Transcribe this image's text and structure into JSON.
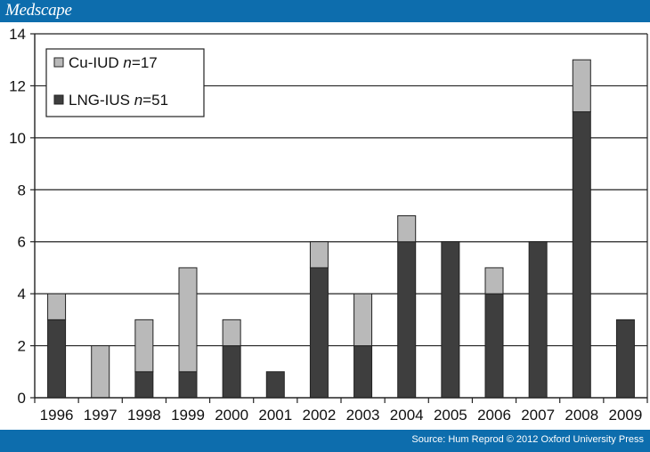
{
  "header": {
    "brand": "Medscape"
  },
  "footer": {
    "source": "Source: Hum Reprod © 2012 Oxford University Press"
  },
  "colors": {
    "bar_bar": "#0d6dad",
    "cu_iud": "#b9b9b9",
    "lng_ius": "#3e3e3e"
  },
  "chart_data": {
    "type": "bar",
    "stacked": true,
    "categories": [
      "1996",
      "1997",
      "1998",
      "1999",
      "2000",
      "2001",
      "2002",
      "2003",
      "2004",
      "2005",
      "2006",
      "2007",
      "2008",
      "2009"
    ],
    "series": [
      {
        "name": "LNG-IUS",
        "label_n": "51",
        "values": [
          3,
          0,
          1,
          1,
          2,
          1,
          5,
          2,
          6,
          6,
          4,
          6,
          11,
          3
        ]
      },
      {
        "name": "Cu-IUD",
        "label_n": "17",
        "values": [
          1,
          2,
          2,
          4,
          1,
          0,
          1,
          2,
          1,
          0,
          1,
          0,
          2,
          0
        ]
      }
    ],
    "ylim": [
      0,
      14
    ],
    "yticks": [
      0,
      2,
      4,
      6,
      8,
      10,
      12,
      14
    ],
    "grid": true,
    "legend_position": "top-left",
    "title": "",
    "xlabel": "",
    "ylabel": ""
  }
}
